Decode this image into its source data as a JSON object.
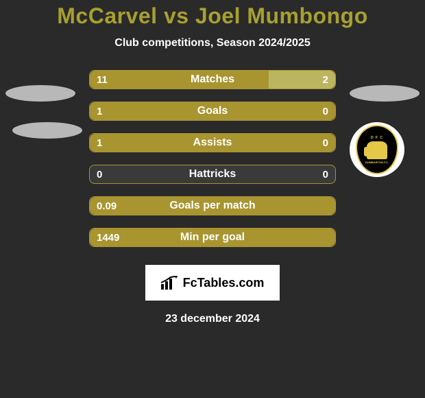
{
  "title_color": "#a8a030",
  "title": "McCarvel vs Joel Mumbongo",
  "subtitle": "Club competitions, Season 2024/2025",
  "date": "23 december 2024",
  "fctables_label": "FcTables.com",
  "bar_color_primary": "#a89530",
  "bar_color_secondary": "#bcb560",
  "background_color": "#2a2a2a",
  "stats": [
    {
      "label": "Matches",
      "left_value": "11",
      "right_value": "2",
      "left_pct": 73,
      "right_pct": 27,
      "left_color": "#a89530",
      "right_color": "#bcb560",
      "mode": "split"
    },
    {
      "label": "Goals",
      "left_value": "1",
      "right_value": "0",
      "left_pct": 100,
      "right_pct": 0,
      "left_color": "#a89530",
      "right_color": "#bcb560",
      "mode": "full"
    },
    {
      "label": "Assists",
      "left_value": "1",
      "right_value": "0",
      "left_pct": 100,
      "right_pct": 0,
      "left_color": "#a89530",
      "right_color": "#bcb560",
      "mode": "full"
    },
    {
      "label": "Hattricks",
      "left_value": "0",
      "right_value": "0",
      "left_pct": 0,
      "right_pct": 0,
      "left_color": "#a89530",
      "right_color": "#bcb560",
      "mode": "empty"
    },
    {
      "label": "Goals per match",
      "left_value": "0.09",
      "right_value": "",
      "left_pct": 100,
      "right_pct": 0,
      "left_color": "#a89530",
      "right_color": "#bcb560",
      "mode": "full"
    },
    {
      "label": "Min per goal",
      "left_value": "1449",
      "right_value": "",
      "left_pct": 100,
      "right_pct": 0,
      "left_color": "#a89530",
      "right_color": "#bcb560",
      "mode": "full"
    }
  ],
  "crest": {
    "top_text": "D F C",
    "bottom_text": "DUMBARTON F.C."
  }
}
